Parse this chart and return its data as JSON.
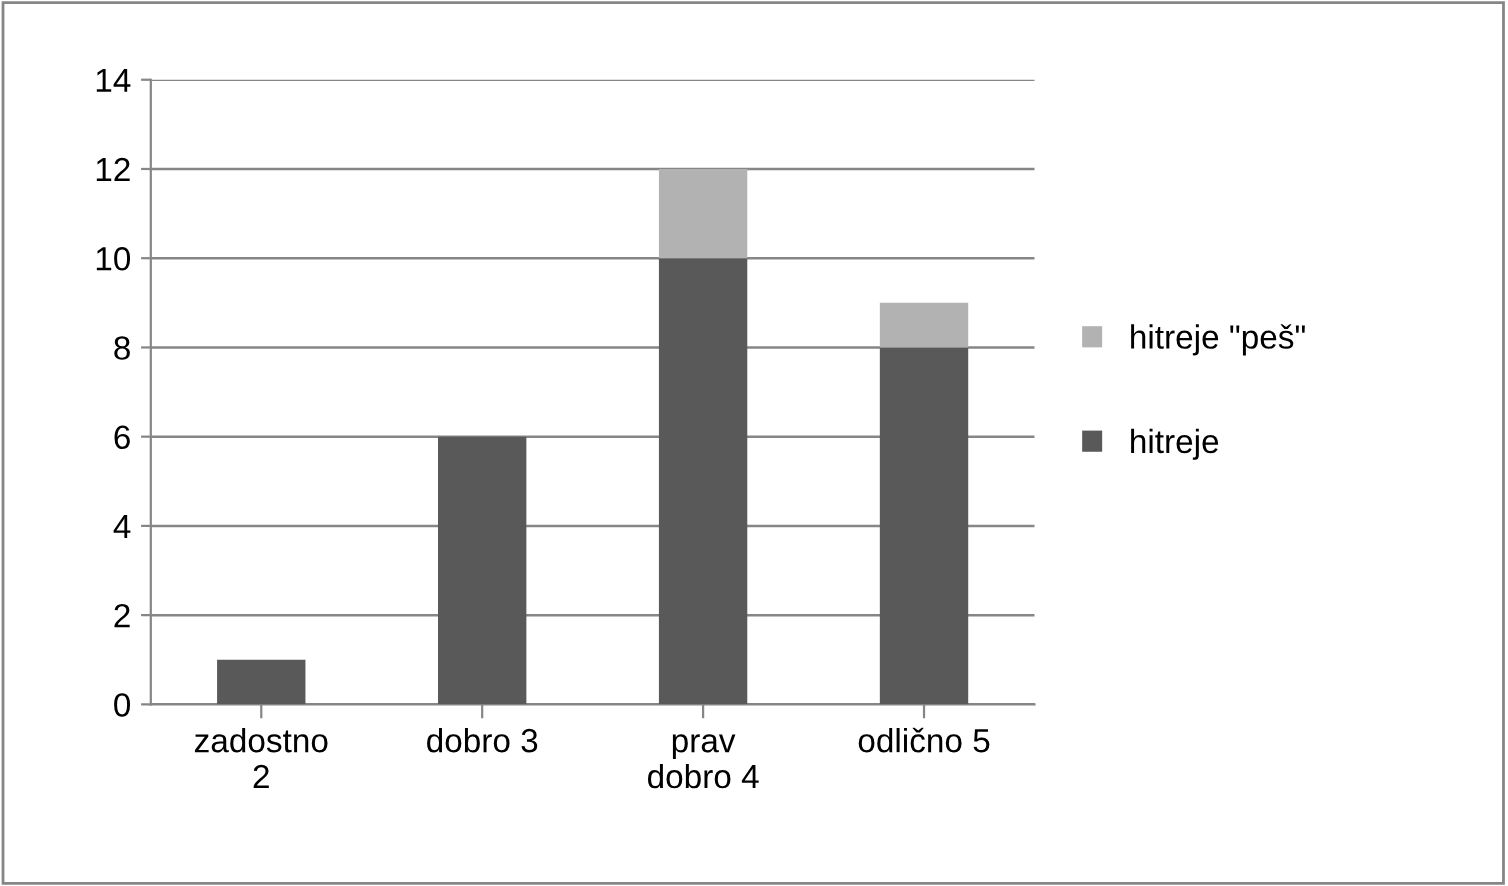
{
  "chart_data": {
    "type": "bar",
    "stacked": true,
    "categories": [
      "zadostno\n2",
      "dobro 3",
      "prav\ndobro 4",
      "odlično 5"
    ],
    "series": [
      {
        "name": "hitreje",
        "color": "#595959",
        "values": [
          1,
          6,
          10,
          8
        ]
      },
      {
        "name": "hitreje \"peš\"",
        "color": "#b2b2b2",
        "values": [
          0,
          0,
          2,
          1
        ]
      }
    ],
    "ylim": [
      0,
      14
    ],
    "yticks": [
      0,
      2,
      4,
      6,
      8,
      10,
      12,
      14
    ],
    "grid": "y",
    "legend": "right"
  }
}
